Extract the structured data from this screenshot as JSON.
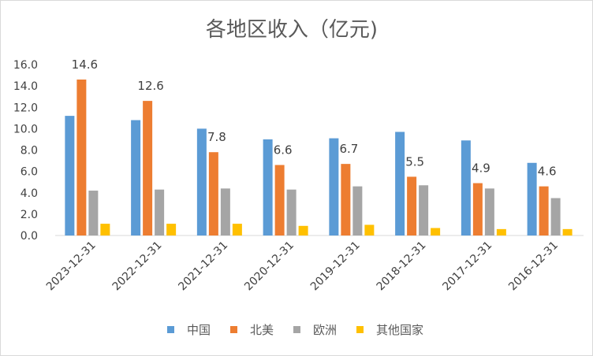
{
  "chart_data": {
    "type": "bar",
    "title": "各地区收入（亿元)",
    "xlabel": "",
    "ylabel": "",
    "ylim": [
      0,
      16
    ],
    "yticks": [
      "0.0",
      "2.0",
      "4.0",
      "6.0",
      "8.0",
      "10.0",
      "12.0",
      "14.0",
      "16.0"
    ],
    "grid": false,
    "legend_position": "bottom",
    "categories": [
      "2023-12-31",
      "2022-12-31",
      "2021-12-31",
      "2020-12-31",
      "2019-12-31",
      "2018-12-31",
      "2017-12-31",
      "2016-12-31"
    ],
    "series": [
      {
        "name": "中国",
        "color": "#5b9bd5",
        "values": [
          11.2,
          10.8,
          10.0,
          9.0,
          9.1,
          9.7,
          8.9,
          6.8
        ]
      },
      {
        "name": "北美",
        "color": "#ed7d31",
        "values": [
          14.6,
          12.6,
          7.8,
          6.6,
          6.7,
          5.5,
          4.9,
          4.6
        ],
        "data_labels": [
          "14.6",
          "12.6",
          "7.8",
          "6.6",
          "6.7",
          "5.5",
          "4.9",
          "4.6"
        ]
      },
      {
        "name": "欧洲",
        "color": "#a5a5a5",
        "values": [
          4.2,
          4.3,
          4.4,
          4.3,
          4.6,
          4.7,
          4.4,
          3.5
        ]
      },
      {
        "name": "其他国家",
        "color": "#ffc000",
        "values": [
          1.1,
          1.1,
          1.1,
          0.9,
          1.0,
          0.7,
          0.6,
          0.6
        ]
      }
    ]
  }
}
